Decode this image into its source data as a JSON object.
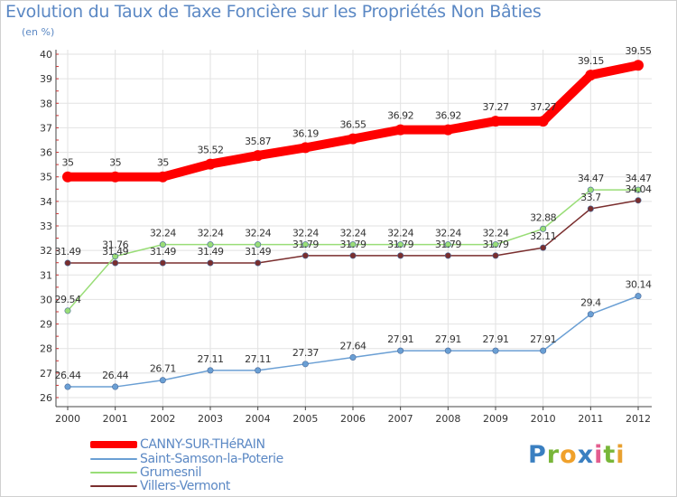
{
  "title": "Evolution du Taux de Taxe Foncière sur les Propriétés Non Bâties",
  "unit_label": "(en %)",
  "logo_text": "Proxiti",
  "chart_data": {
    "type": "line",
    "title": "Evolution du Taux de Taxe Foncière sur les Propriétés Non Bâties",
    "xlabel": "",
    "ylabel": "(en %)",
    "ylim": [
      26,
      40
    ],
    "yticks": [
      26,
      27,
      28,
      29,
      30,
      31,
      32,
      33,
      34,
      35,
      36,
      37,
      38,
      39,
      40
    ],
    "x": [
      "2000",
      "2001",
      "2002",
      "2003",
      "2004",
      "2005",
      "2006",
      "2007",
      "2008",
      "2009",
      "2010",
      "2011",
      "2012"
    ],
    "legend_position": "bottom-left",
    "series": [
      {
        "name": "CANNY-SUR-THéRAIN",
        "color": "#ff0000",
        "values": [
          35,
          35,
          35,
          35.52,
          35.87,
          36.19,
          36.55,
          36.92,
          36.92,
          37.27,
          37.27,
          39.15,
          39.55
        ],
        "labels": [
          "35",
          "35",
          "35",
          "35.52",
          "35.87",
          "36.19",
          "36.55",
          "36.92",
          "36.92",
          "37.27",
          "37.27",
          "39.15",
          "39.55"
        ]
      },
      {
        "name": "Saint-Samson-la-Poterie",
        "color": "#6a9fd4",
        "values": [
          26.44,
          26.44,
          26.71,
          27.11,
          27.11,
          27.37,
          27.64,
          27.91,
          27.91,
          27.91,
          27.91,
          29.4,
          30.14
        ],
        "labels": [
          "26.44",
          "26.44",
          "26.71",
          "27.11",
          "27.11",
          "27.37",
          "27.64",
          "27.91",
          "27.91",
          "27.91",
          "27.91",
          "29.4",
          "30.14"
        ]
      },
      {
        "name": "Grumesnil",
        "color": "#99dd77",
        "values": [
          29.54,
          31.76,
          32.24,
          32.24,
          32.24,
          32.24,
          32.24,
          32.24,
          32.24,
          32.24,
          32.88,
          34.47,
          34.47
        ],
        "labels": [
          "29.54",
          "31.76",
          "32.24",
          "32.24",
          "32.24",
          "32.24",
          "32.24",
          "32.24",
          "32.24",
          "32.24",
          "32.88",
          "34.47",
          "34.47"
        ]
      },
      {
        "name": "Villers-Vermont",
        "color": "#7a2e2e",
        "values": [
          31.49,
          31.49,
          31.49,
          31.49,
          31.49,
          31.79,
          31.79,
          31.79,
          31.79,
          31.79,
          32.11,
          33.7,
          34.04
        ],
        "labels": [
          "31.49",
          "31.49",
          "31.49",
          "31.49",
          "31.49",
          "31.79",
          "31.79",
          "31.79",
          "31.79",
          "31.79",
          "32.11",
          "33.7",
          "34.04"
        ]
      }
    ]
  }
}
